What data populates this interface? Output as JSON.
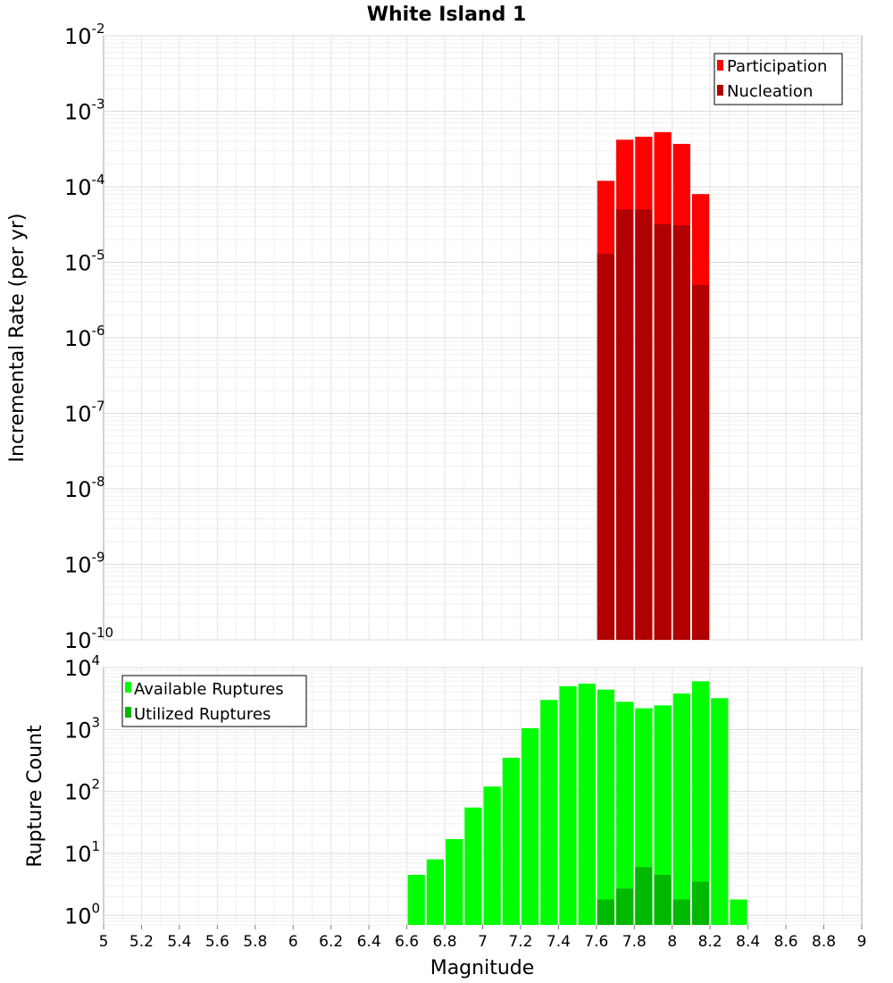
{
  "chart_data": [
    {
      "type": "bar",
      "title": "White Island 1",
      "xlabel": "",
      "ylabel": "Incremental Rate (per yr)",
      "yscale": "log",
      "ylim": [
        1e-10,
        0.01
      ],
      "yticks": [
        {
          "base": "10",
          "exp": "-2"
        },
        {
          "base": "10",
          "exp": "-3"
        },
        {
          "base": "10",
          "exp": "-4"
        },
        {
          "base": "10",
          "exp": "-5"
        },
        {
          "base": "10",
          "exp": "-6"
        },
        {
          "base": "10",
          "exp": "-7"
        },
        {
          "base": "10",
          "exp": "-8"
        },
        {
          "base": "10",
          "exp": "-9"
        },
        {
          "base": "10",
          "exp": "-10"
        }
      ],
      "xlim": [
        5,
        9
      ],
      "bin_width": 0.1,
      "legend_position": "top-right",
      "series": [
        {
          "name": "Participation",
          "color": "#ff0000",
          "x": [
            7.65,
            7.75,
            7.85,
            7.95,
            8.05,
            8.15
          ],
          "values": [
            0.00012,
            0.00042,
            0.00046,
            0.00053,
            0.00037,
            8e-05
          ]
        },
        {
          "name": "Nucleation",
          "color": "#b00000",
          "x": [
            7.65,
            7.75,
            7.85,
            7.95,
            8.05,
            8.15
          ],
          "values": [
            1.3e-05,
            5e-05,
            5e-05,
            3.2e-05,
            3.1e-05,
            5e-06
          ]
        }
      ]
    },
    {
      "type": "bar",
      "title": "",
      "xlabel": "Magnitude",
      "ylabel": "Rupture Count",
      "yscale": "log",
      "ylim": [
        0.7,
        10000
      ],
      "yticks": [
        {
          "base": "10",
          "exp": "4",
          "value": 10000
        },
        {
          "base": "10",
          "exp": "3",
          "value": 1000
        },
        {
          "base": "10",
          "exp": "2",
          "value": 100
        },
        {
          "base": "10",
          "exp": "1",
          "value": 10
        },
        {
          "base": "10",
          "exp": "0",
          "value": 1
        }
      ],
      "xlim": [
        5,
        9
      ],
      "xticks": [
        "5",
        "5.2",
        "5.4",
        "5.6",
        "5.8",
        "6",
        "6.2",
        "6.4",
        "6.6",
        "6.8",
        "7",
        "7.2",
        "7.4",
        "7.6",
        "7.8",
        "8",
        "8.2",
        "8.4",
        "8.6",
        "8.8",
        "9"
      ],
      "bin_width": 0.1,
      "legend_position": "top-left",
      "series": [
        {
          "name": "Available Ruptures",
          "color": "#00ff00",
          "x": [
            6.65,
            6.75,
            6.85,
            6.95,
            7.05,
            7.15,
            7.25,
            7.35,
            7.45,
            7.55,
            7.65,
            7.75,
            7.85,
            7.95,
            8.05,
            8.15,
            8.25,
            8.35
          ],
          "values": [
            4.5,
            8,
            17,
            55,
            120,
            350,
            1050,
            3000,
            5000,
            5500,
            4400,
            2800,
            2200,
            2450,
            3800,
            6000,
            3200,
            1.8
          ]
        },
        {
          "name": "Utilized Ruptures",
          "color": "#00b800",
          "x": [
            7.65,
            7.75,
            7.85,
            7.95,
            8.05,
            8.15
          ],
          "values": [
            1.8,
            2.7,
            6,
            4.5,
            1.8,
            3.5
          ]
        }
      ]
    }
  ]
}
